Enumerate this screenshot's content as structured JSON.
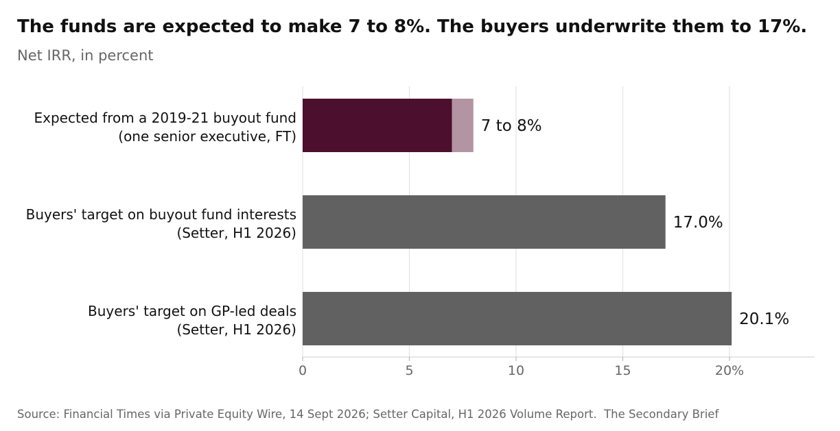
{
  "chart_data": {
    "type": "bar",
    "orientation": "horizontal",
    "stacked": true,
    "title": "The funds are expected to make 7 to 8%. The buyers underwrite them to 17%.",
    "subtitle": "Net IRR, in percent",
    "categories": [
      [
        "Expected from a 2019-21 buyout fund",
        "(one senior executive, FT)"
      ],
      [
        "Buyers' target on buyout fund interests",
        "(Setter, H1 2026)"
      ],
      [
        "Buyers' target on GP-led deals",
        "(Setter, H1 2026)"
      ]
    ],
    "series": [
      {
        "values": [
          7,
          17.0,
          20.1
        ],
        "colors": [
          "#4d0f2e",
          "#616161",
          "#616161"
        ]
      },
      {
        "values": [
          1,
          0,
          0
        ],
        "colors": [
          "#b394a3",
          "#616161",
          "#616161"
        ]
      }
    ],
    "data_labels": [
      "7 to 8%",
      "17.0%",
      "20.1%"
    ],
    "xlim": [
      0,
      24
    ],
    "xticks": [
      0,
      5,
      10,
      15,
      20
    ],
    "xtick_labels": [
      "0",
      "5",
      "10",
      "15",
      "20%"
    ],
    "grid": "vertical"
  },
  "source": "Source: Financial Times via Private Equity Wire, 14 Sept 2026; Setter Capital, H1 2026 Volume Report.  The Secondary Brief"
}
